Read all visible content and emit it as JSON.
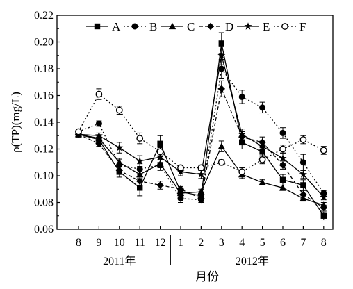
{
  "chart_data": {
    "type": "line",
    "x": [
      "8",
      "9",
      "10",
      "11",
      "12",
      "1",
      "2",
      "3",
      "4",
      "5",
      "6",
      "7",
      "8"
    ],
    "year_groups": [
      {
        "label": "2011年",
        "from": 0,
        "to": 4
      },
      {
        "label": "2012年",
        "from": 5,
        "to": 12
      }
    ],
    "xlabel": "月份",
    "ylabel": "ρ(TP)(mg/L)",
    "ylim": [
      0.06,
      0.22
    ],
    "yticks": [
      0.06,
      0.08,
      0.1,
      0.12,
      0.14,
      0.16,
      0.18,
      0.2,
      0.22
    ],
    "ytick_labels": [
      "0.06",
      "0.08",
      "0.10",
      "0.12",
      "0.14",
      "0.16",
      "0.18",
      "0.20",
      "0.22"
    ],
    "legend_position": "top",
    "series": [
      {
        "name": "A",
        "marker": "square",
        "dash": "solid",
        "values": [
          0.131,
          0.127,
          0.103,
          0.091,
          0.124,
          0.088,
          0.085,
          0.199,
          0.125,
          0.118,
          0.097,
          0.093,
          0.07
        ],
        "errors": [
          0.002,
          0.002,
          0.004,
          0.006,
          0.006,
          0.003,
          0.003,
          0.008,
          0.005,
          0.004,
          0.004,
          0.004,
          0.003
        ]
      },
      {
        "name": "B",
        "marker": "circle",
        "dash": "dot",
        "values": [
          0.133,
          0.139,
          0.108,
          0.105,
          0.108,
          0.083,
          0.082,
          0.18,
          0.159,
          0.151,
          0.132,
          0.11,
          0.087
        ],
        "errors": [
          0.002,
          0.002,
          0.004,
          0.004,
          0.004,
          0.003,
          0.002,
          0.007,
          0.005,
          0.004,
          0.004,
          0.006,
          0.002
        ]
      },
      {
        "name": "C",
        "marker": "triangle",
        "dash": "solid",
        "values": [
          0.131,
          0.128,
          0.11,
          0.101,
          0.109,
          0.087,
          0.088,
          0.122,
          0.101,
          0.095,
          0.091,
          0.083,
          0.078
        ],
        "errors": [
          0.002,
          0.002,
          0.003,
          0.003,
          0.003,
          0.002,
          0.002,
          0.004,
          0.003,
          0.002,
          0.002,
          0.002,
          0.002
        ]
      },
      {
        "name": "D",
        "marker": "diamond",
        "dash": "dash",
        "values": [
          0.131,
          0.124,
          0.104,
          0.096,
          0.093,
          0.09,
          0.083,
          0.165,
          0.129,
          0.125,
          0.108,
          0.086,
          0.076
        ],
        "errors": [
          0.002,
          0.002,
          0.003,
          0.003,
          0.003,
          0.002,
          0.002,
          0.006,
          0.004,
          0.004,
          0.003,
          0.003,
          0.002
        ]
      },
      {
        "name": "E",
        "marker": "star",
        "dash": "solid",
        "values": [
          0.131,
          0.13,
          0.121,
          0.111,
          0.114,
          0.103,
          0.101,
          0.19,
          0.131,
          0.122,
          0.113,
          0.101,
          0.084
        ],
        "errors": [
          0.002,
          0.002,
          0.004,
          0.004,
          0.004,
          0.003,
          0.003,
          0.007,
          0.004,
          0.004,
          0.004,
          0.003,
          0.002
        ]
      },
      {
        "name": "F",
        "marker": "open-circle",
        "dash": "dot",
        "values": [
          0.133,
          0.161,
          0.149,
          0.128,
          0.118,
          0.106,
          0.106,
          0.11,
          0.103,
          0.112,
          0.12,
          0.127,
          0.119
        ],
        "errors": [
          0.002,
          0.004,
          0.003,
          0.004,
          0.003,
          0.002,
          0.002,
          0.002,
          0.003,
          0.003,
          0.003,
          0.003,
          0.003
        ]
      }
    ]
  }
}
